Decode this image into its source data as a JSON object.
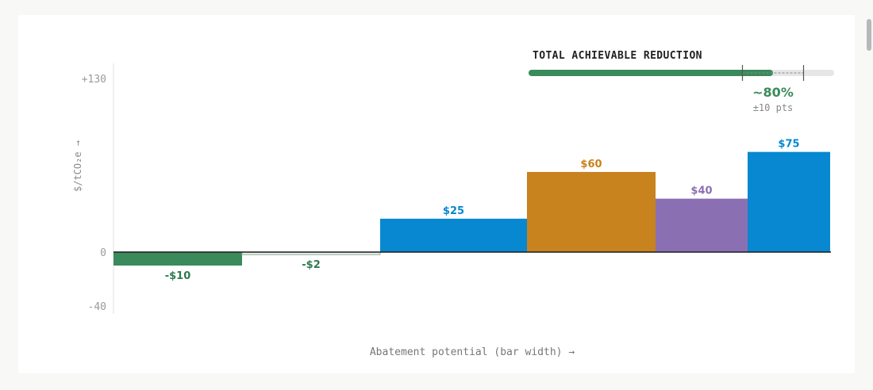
{
  "chart_data": {
    "type": "bar",
    "variable_width": true,
    "categories": [
      "",
      "",
      "",
      "",
      "",
      ""
    ],
    "values": [
      -10,
      -2,
      25,
      60,
      40,
      75
    ],
    "data_labels": [
      "-$10",
      "-$2",
      "$25",
      "$60",
      "$40",
      "$75"
    ],
    "widths": [
      162,
      174,
      185,
      162,
      116,
      104
    ],
    "colors": [
      "#3a8a5c",
      "#3a8a5c",
      "#0788d0",
      "#c8821e",
      "#8a70b3",
      "#0788d0"
    ],
    "label_colors": [
      "#2f7a50",
      "#2f7a50",
      "#0788d0",
      "#c8821e",
      "#8a70b3",
      "#0788d0"
    ],
    "ylim": [
      -40,
      130
    ],
    "yticks": [
      130,
      0,
      -40
    ],
    "ytick_labels": [
      "+130",
      "0",
      "-40"
    ],
    "xlabel": "Abatement potential (bar width) →",
    "ylabel": "$/tCO₂e →",
    "grid": false
  },
  "reduction_panel": {
    "title": "TOTAL ACHIEVABLE REDUCTION",
    "value": 0.8,
    "range_low": 0.7,
    "range_high": 0.9,
    "value_label": "~80%",
    "range_label": "±10 pts",
    "colors": {
      "fill": "#3a8a5c",
      "track": "#e6e6e6"
    }
  }
}
